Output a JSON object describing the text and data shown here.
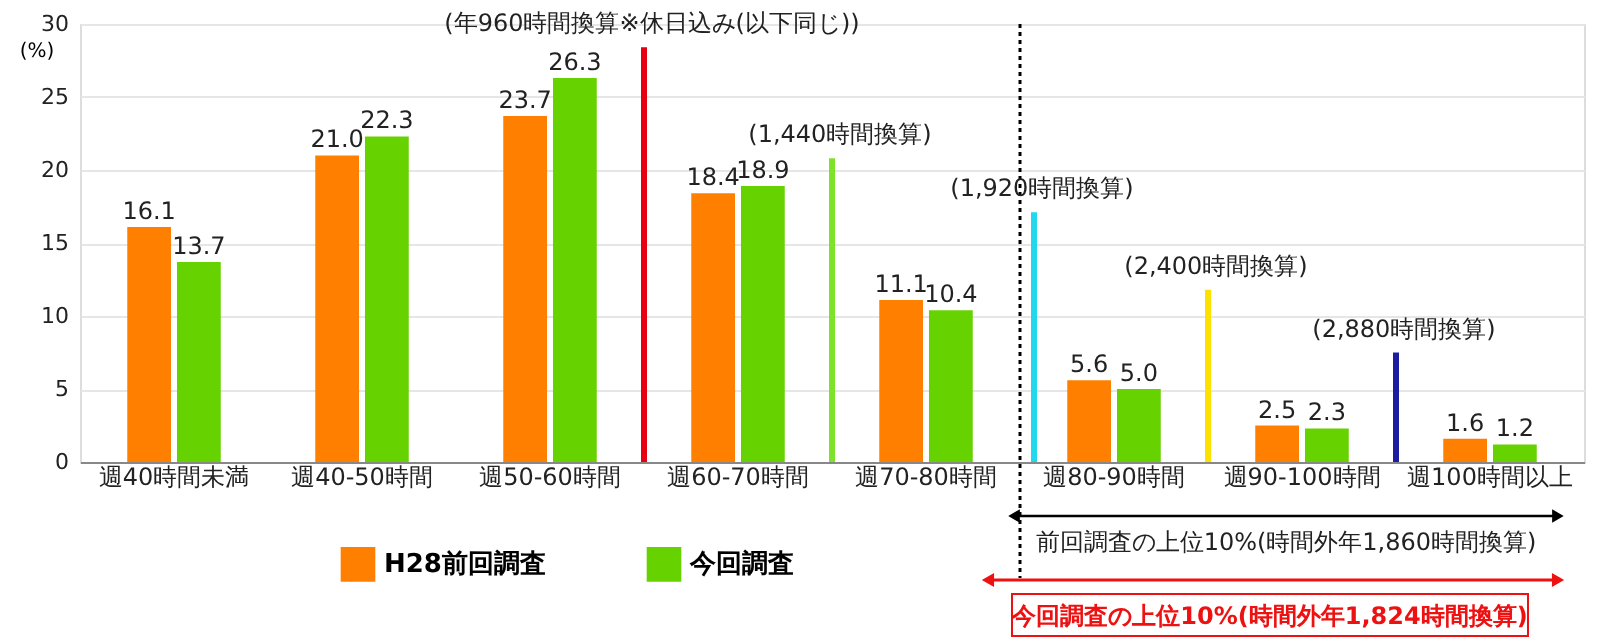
{
  "chart_data": {
    "type": "bar",
    "ylabel": "(%)",
    "categories": [
      "週40時間未満",
      "週40-50時間",
      "週50-60時間",
      "週60-70時間",
      "週70-80時間",
      "週80-90時間",
      "週90-100時間",
      "週100時間以上"
    ],
    "series": [
      {
        "name": "H28前回調査",
        "color": "#ff8000",
        "values": [
          16.1,
          21.0,
          23.7,
          18.4,
          11.1,
          5.6,
          2.5,
          1.6
        ],
        "value_labels": [
          "16.1",
          "21.0",
          "23.7",
          "18.4",
          "11.1",
          "5.6",
          "2.5",
          "1.6"
        ]
      },
      {
        "name": "今回調査",
        "color": "#66d200",
        "values": [
          13.7,
          22.3,
          26.3,
          18.9,
          10.4,
          5.0,
          2.3,
          1.2
        ],
        "value_labels": [
          "13.7",
          "22.3",
          "26.3",
          "18.9",
          "10.4",
          "5.0",
          "2.3",
          "1.2"
        ]
      }
    ],
    "ylim": [
      0,
      30
    ],
    "yticks": [
      0,
      5,
      10,
      15,
      20,
      25,
      30
    ],
    "grid": "y",
    "legend": "bottom",
    "ref_lines": [
      {
        "axis": "x",
        "value": "週60-70時間",
        "label": "(年960時間換算※休日込み(以下同じ))",
        "color": "#e60012"
      },
      {
        "axis": "x",
        "value": "週70-80時間",
        "label": "(1,440時間換算)",
        "color": "#7ee22a"
      },
      {
        "axis": "x",
        "value": "週80-90時間",
        "color": "#000000",
        "line_style": "dotted"
      },
      {
        "axis": "x",
        "value": "週80-90時間",
        "label": "(1,920時間換算)",
        "color": "#22d8ee"
      },
      {
        "axis": "x",
        "value": "週90-100時間",
        "label": "(2,400時間換算)",
        "color": "#ffe100"
      },
      {
        "axis": "x",
        "value": "週100時間以上",
        "label": "(2,880時間換算)",
        "color": "#1c1ca0"
      }
    ],
    "annotations": [
      "前回調査の上位10%(時間外年1,860時間換算)",
      "今回調査の上位10%(時間外年1,824時間換算)"
    ]
  }
}
